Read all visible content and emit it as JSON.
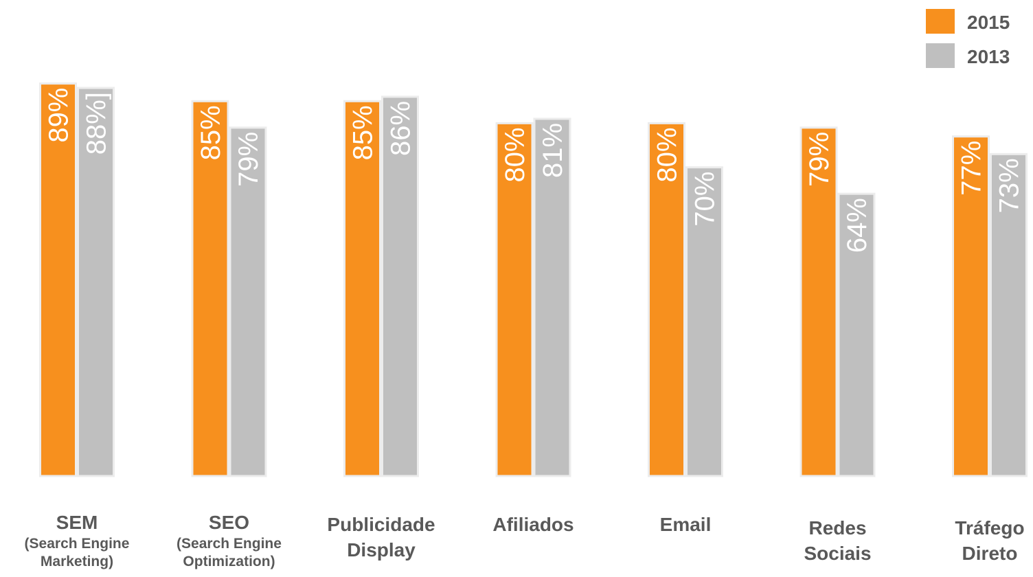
{
  "chart_data": {
    "type": "bar",
    "categories": [
      "SEM",
      "SEO",
      "Publicidade\nDisplay",
      "Afiliados",
      "Email",
      "Redes\nSociais",
      "Tráfego\nDireto"
    ],
    "category_subtitles": [
      "(Search Engine\nMarketing)",
      "(Search Engine\nOptimization)",
      null,
      null,
      null,
      null,
      null
    ],
    "series": [
      {
        "name": "2015",
        "color": "#f7901e",
        "values": [
          89,
          85,
          85,
          80,
          80,
          79,
          77
        ],
        "value_labels": [
          "89%",
          "85%",
          "85%",
          "80%",
          "80%",
          "79%",
          "77%"
        ]
      },
      {
        "name": "2013",
        "color": "#bfbfbf",
        "values": [
          88,
          79,
          86,
          81,
          70,
          64,
          73
        ],
        "value_labels": [
          "88%]",
          "79%",
          "86%",
          "81%",
          "70%",
          "64%",
          "73%"
        ]
      }
    ],
    "ylim": [
      0,
      100
    ],
    "legend": "top-right"
  }
}
